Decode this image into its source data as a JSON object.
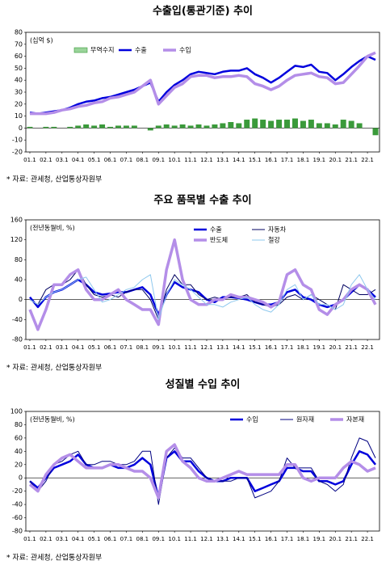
{
  "chart_data": [
    {
      "type": "line",
      "title": "수출입(통관기준) 추이",
      "unit": "(십억 $)",
      "source": "* 자료: 관세청, 산업통상자원부",
      "categories": [
        "01.1",
        null,
        "02.1",
        null,
        "03.1",
        null,
        "04.1",
        null,
        "05.1",
        null,
        "06.1",
        null,
        "07.1",
        null,
        "08.1",
        null,
        "09.1",
        null,
        "10.1",
        null,
        "11.1",
        null,
        "12.1",
        null,
        "13.1",
        null,
        "14.1",
        null,
        "15.1",
        null,
        "16.1",
        null,
        "17.1",
        null,
        "18.1",
        null,
        "19.1",
        null,
        "20.1",
        null,
        "21.1",
        null,
        "22.1",
        null
      ],
      "ylim": [
        -20,
        80
      ],
      "yticks": [
        -20,
        -10,
        0,
        10,
        20,
        30,
        40,
        50,
        60,
        70,
        80
      ],
      "series": [
        {
          "name": "무역수지",
          "type": "bar",
          "color": "#3a9a3a",
          "values": [
            1,
            0,
            1,
            1,
            0,
            1,
            2,
            3,
            2,
            3,
            1,
            2,
            2,
            2,
            0,
            -2,
            2,
            3,
            2,
            3,
            2,
            3,
            2,
            3,
            4,
            5,
            4,
            7,
            8,
            7,
            6,
            7,
            7,
            8,
            6,
            7,
            4,
            4,
            3,
            7,
            6,
            4,
            0,
            -6
          ]
        },
        {
          "name": "수출",
          "color": "#0000dd",
          "width": 2.5,
          "values": [
            13,
            12,
            13,
            14,
            15,
            17,
            20,
            22,
            23,
            25,
            26,
            28,
            30,
            32,
            35,
            38,
            22,
            30,
            36,
            40,
            45,
            47,
            46,
            45,
            47,
            48,
            48,
            50,
            45,
            42,
            38,
            42,
            47,
            52,
            51,
            53,
            47,
            46,
            40,
            45,
            51,
            56,
            60,
            57
          ]
        },
        {
          "name": "수입",
          "color": "#b48ee8",
          "width": 3.5,
          "values": [
            12,
            12,
            12,
            13,
            15,
            16,
            18,
            19,
            21,
            22,
            25,
            26,
            28,
            30,
            35,
            40,
            20,
            27,
            34,
            37,
            43,
            44,
            44,
            42,
            43,
            43,
            44,
            43,
            37,
            35,
            32,
            35,
            40,
            44,
            45,
            46,
            43,
            42,
            37,
            38,
            45,
            52,
            60,
            63
          ]
        }
      ]
    },
    {
      "type": "line",
      "title": "주요 품목별 수출 추이",
      "unit": "(전년동월비, %)",
      "source": "* 자료: 관세청, 산업통상자원부",
      "categories": [
        "01.1",
        null,
        "02.1",
        null,
        "03.1",
        null,
        "04.1",
        null,
        "05.1",
        null,
        "06.1",
        null,
        "07.1",
        null,
        "08.1",
        null,
        "09.1",
        null,
        "10.1",
        null,
        "11.1",
        null,
        "12.1",
        null,
        "13.1",
        null,
        "14.1",
        null,
        "15.1",
        null,
        "16.1",
        null,
        "17.1",
        null,
        "18.1",
        null,
        "19.1",
        null,
        "20.1",
        null,
        "21.1",
        null,
        "22.1",
        null
      ],
      "ylim": [
        -80,
        160
      ],
      "yticks": [
        -80,
        -40,
        0,
        40,
        80,
        120,
        160
      ],
      "series": [
        {
          "name": "수출",
          "color": "#0000dd",
          "width": 2.5,
          "values": [
            5,
            -15,
            5,
            15,
            20,
            30,
            40,
            30,
            15,
            10,
            12,
            15,
            15,
            20,
            25,
            10,
            -30,
            10,
            35,
            25,
            20,
            15,
            0,
            -5,
            5,
            5,
            3,
            0,
            -5,
            -10,
            -10,
            -5,
            15,
            20,
            5,
            0,
            -10,
            -15,
            -10,
            0,
            15,
            30,
            20,
            5
          ]
        },
        {
          "name": "자동차",
          "color": "#000060",
          "width": 1,
          "values": [
            0,
            -10,
            20,
            30,
            30,
            40,
            60,
            30,
            10,
            5,
            10,
            5,
            15,
            20,
            20,
            0,
            -40,
            20,
            50,
            30,
            30,
            10,
            0,
            5,
            0,
            5,
            5,
            10,
            -5,
            -10,
            -15,
            -10,
            5,
            10,
            0,
            10,
            0,
            -10,
            -20,
            30,
            20,
            10,
            10,
            20
          ]
        },
        {
          "name": "반도체",
          "color": "#b48ee8",
          "width": 3.5,
          "values": [
            -20,
            -60,
            -20,
            30,
            30,
            50,
            60,
            20,
            0,
            0,
            10,
            20,
            0,
            -10,
            -20,
            -20,
            -50,
            60,
            120,
            40,
            0,
            -10,
            -10,
            0,
            0,
            10,
            5,
            5,
            0,
            -5,
            -15,
            -5,
            50,
            60,
            30,
            20,
            -20,
            -30,
            -10,
            0,
            20,
            30,
            20,
            -10
          ]
        },
        {
          "name": "철강",
          "color": "#8ec8ee",
          "width": 1,
          "values": [
            0,
            -10,
            5,
            15,
            20,
            30,
            40,
            45,
            20,
            -5,
            0,
            10,
            20,
            25,
            40,
            50,
            -40,
            10,
            40,
            30,
            20,
            5,
            -10,
            -10,
            -15,
            -5,
            0,
            5,
            -10,
            -20,
            -25,
            -10,
            20,
            30,
            0,
            10,
            -10,
            -10,
            -20,
            -10,
            30,
            50,
            20,
            0
          ]
        }
      ]
    },
    {
      "type": "line",
      "title": "성질별 수입 추이",
      "unit": "(전년동월비, %)",
      "source": "* 자료: 관세청, 산업통상자원부",
      "categories": [
        "01.1",
        null,
        "02.1",
        null,
        "03.1",
        null,
        "04.1",
        null,
        "05.1",
        null,
        "06.1",
        null,
        "07.1",
        null,
        "08.1",
        null,
        "09.1",
        null,
        "10.1",
        null,
        "11.1",
        null,
        "12.1",
        null,
        "13.1",
        null,
        "14.1",
        null,
        "15.1",
        null,
        "16.1",
        null,
        "17.1",
        null,
        "18.1",
        null,
        "19.1",
        null,
        "20.1",
        null,
        "21.1",
        null,
        "22.1",
        null
      ],
      "ylim": [
        -80,
        100
      ],
      "yticks": [
        -80,
        -60,
        -40,
        -20,
        0,
        20,
        40,
        60,
        80,
        100
      ],
      "series": [
        {
          "name": "수입",
          "color": "#0000dd",
          "width": 2.5,
          "values": [
            -5,
            -15,
            0,
            15,
            20,
            25,
            35,
            20,
            15,
            15,
            20,
            15,
            15,
            20,
            30,
            20,
            -30,
            30,
            40,
            25,
            25,
            10,
            0,
            -5,
            -5,
            0,
            0,
            0,
            -20,
            -15,
            -10,
            -5,
            15,
            15,
            10,
            10,
            -5,
            -5,
            -10,
            -5,
            20,
            40,
            35,
            20
          ]
        },
        {
          "name": "원자재",
          "color": "#000080",
          "width": 1,
          "values": [
            -5,
            -20,
            -5,
            20,
            25,
            35,
            40,
            20,
            20,
            25,
            25,
            20,
            20,
            25,
            40,
            40,
            -40,
            30,
            45,
            30,
            30,
            15,
            0,
            -5,
            -5,
            -5,
            0,
            0,
            -30,
            -25,
            -20,
            -5,
            30,
            15,
            15,
            15,
            -5,
            -10,
            -20,
            -10,
            30,
            60,
            55,
            30
          ]
        },
        {
          "name": "자본재",
          "color": "#b48ee8",
          "width": 3.5,
          "values": [
            -10,
            -20,
            5,
            20,
            30,
            35,
            25,
            15,
            15,
            15,
            20,
            20,
            15,
            10,
            10,
            0,
            -30,
            40,
            50,
            25,
            15,
            0,
            -5,
            -5,
            0,
            5,
            10,
            5,
            5,
            5,
            5,
            5,
            20,
            20,
            0,
            -5,
            0,
            0,
            0,
            15,
            25,
            20,
            10,
            15
          ]
        }
      ]
    }
  ]
}
